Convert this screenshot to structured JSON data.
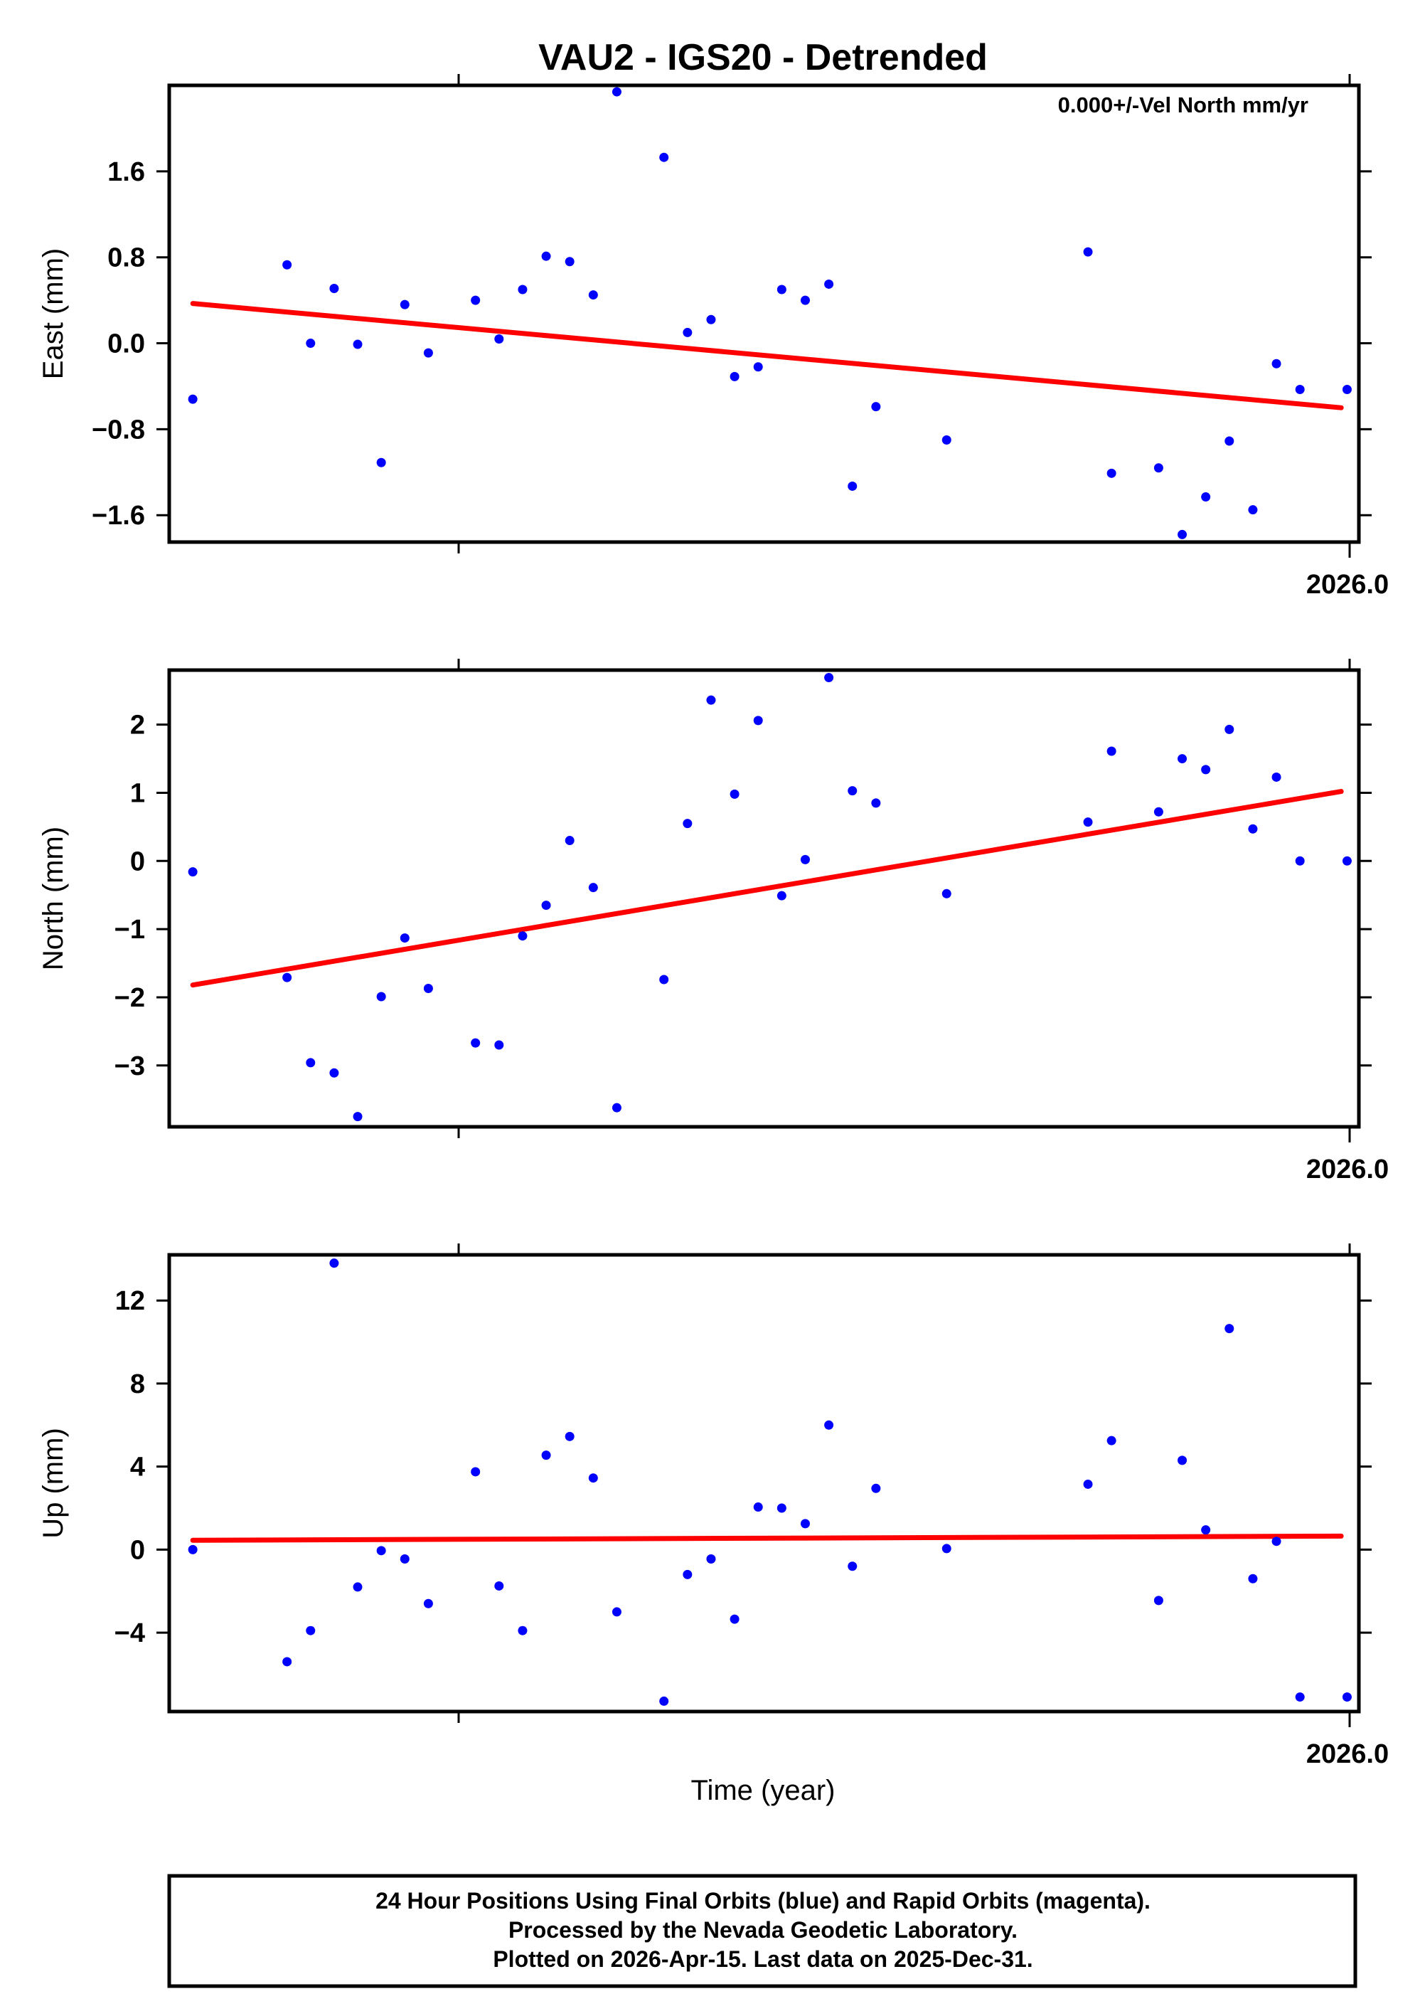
{
  "title": "VAU2 - IGS20 - Detrended",
  "annotation": "0.000+/-Vel North mm/yr",
  "xlabel": "Time (year)",
  "year_tick_label": "2026.0",
  "colors": {
    "final_orbit_points": "#0000ff",
    "trend_line": "#ff0000",
    "frame": "#000000"
  },
  "footer": {
    "line1": "24 Hour Positions Using Final Orbits (blue) and Rapid Orbits (magenta).",
    "line2": "Processed by the Nevada Geodetic Laboratory.",
    "line3": "Plotted on 2026-Apr-15. Last data on 2025-Dec-31."
  },
  "chart_data": [
    {
      "type": "scatter",
      "ylabel": "East (mm)",
      "ylim": [
        -1.85,
        2.4
      ],
      "xlim": [
        2025.0,
        2026.01
      ],
      "yticks": [
        1.6,
        0.8,
        0.0,
        -0.8,
        -1.6
      ],
      "ytick_labels": [
        "1.6",
        "0.8",
        "0.0",
        "−0.8",
        "−1.6"
      ],
      "trend": {
        "x": [
          2025.02,
          2025.995
        ],
        "y": [
          0.37,
          -0.6
        ]
      },
      "x": [
        2025.02,
        2025.1,
        2025.12,
        2025.14,
        2025.16,
        2025.18,
        2025.2,
        2025.22,
        2025.26,
        2025.28,
        2025.3,
        2025.32,
        2025.34,
        2025.36,
        2025.38,
        2025.42,
        2025.44,
        2025.46,
        2025.48,
        2025.5,
        2025.52,
        2025.54,
        2025.56,
        2025.58,
        2025.6,
        2025.66,
        2025.78,
        2025.8,
        2025.84,
        2025.86,
        2025.88,
        2025.9,
        2025.92,
        2025.94,
        2025.96,
        2026.0
      ],
      "y": [
        -0.52,
        0.73,
        0.0,
        0.51,
        -0.01,
        -1.11,
        0.36,
        -0.09,
        0.4,
        0.04,
        0.5,
        0.81,
        0.76,
        0.45,
        2.34,
        1.73,
        0.1,
        0.22,
        -0.31,
        -0.22,
        0.5,
        0.4,
        0.55,
        -1.33,
        -0.59,
        -0.9,
        0.85,
        -1.21,
        -1.16,
        -1.78,
        -1.43,
        -0.91,
        -1.55,
        -0.19,
        -0.43,
        -0.43
      ]
    },
    {
      "type": "scatter",
      "ylabel": "North (mm)",
      "ylim": [
        -3.9,
        2.8
      ],
      "xlim": [
        2025.0,
        2026.01
      ],
      "yticks": [
        2,
        1,
        0,
        -1,
        -2,
        -3
      ],
      "ytick_labels": [
        "2",
        "1",
        "0",
        "−1",
        "−2",
        "−3"
      ],
      "trend": {
        "x": [
          2025.02,
          2025.995
        ],
        "y": [
          -1.82,
          1.02
        ]
      },
      "x": [
        2025.02,
        2025.1,
        2025.12,
        2025.14,
        2025.16,
        2025.18,
        2025.2,
        2025.22,
        2025.26,
        2025.28,
        2025.3,
        2025.32,
        2025.34,
        2025.36,
        2025.38,
        2025.42,
        2025.44,
        2025.46,
        2025.48,
        2025.5,
        2025.52,
        2025.54,
        2025.56,
        2025.58,
        2025.6,
        2025.66,
        2025.78,
        2025.8,
        2025.84,
        2025.86,
        2025.88,
        2025.9,
        2025.92,
        2025.94,
        2025.96,
        2026.0
      ],
      "y": [
        -0.16,
        -1.71,
        -2.96,
        -3.11,
        -3.75,
        -1.99,
        -1.13,
        -1.87,
        -2.67,
        -2.7,
        -1.1,
        -0.65,
        0.3,
        -0.39,
        -3.62,
        -1.74,
        0.55,
        2.36,
        0.98,
        2.06,
        -0.51,
        0.02,
        2.69,
        1.03,
        0.85,
        -0.48,
        0.57,
        1.61,
        0.72,
        1.5,
        1.34,
        1.93,
        0.47,
        1.23,
        0.0,
        0.0
      ]
    },
    {
      "type": "scatter",
      "ylabel": "Up (mm)",
      "ylim": [
        -7.8,
        14.2
      ],
      "xlim": [
        2025.0,
        2026.01
      ],
      "yticks": [
        12,
        8,
        4,
        0,
        -4
      ],
      "ytick_labels": [
        "12",
        "8",
        "4",
        "0",
        "−4"
      ],
      "trend": {
        "x": [
          2025.02,
          2025.995
        ],
        "y": [
          0.45,
          0.65
        ]
      },
      "x": [
        2025.02,
        2025.1,
        2025.12,
        2025.14,
        2025.16,
        2025.18,
        2025.2,
        2025.22,
        2025.26,
        2025.28,
        2025.3,
        2025.32,
        2025.34,
        2025.36,
        2025.38,
        2025.42,
        2025.44,
        2025.46,
        2025.48,
        2025.5,
        2025.52,
        2025.54,
        2025.56,
        2025.58,
        2025.6,
        2025.66,
        2025.78,
        2025.8,
        2025.84,
        2025.86,
        2025.88,
        2025.9,
        2025.92,
        2025.94,
        2025.96,
        2026.0
      ],
      "y": [
        0.0,
        -5.4,
        -3.9,
        13.8,
        -1.8,
        -0.05,
        -0.45,
        -2.6,
        3.75,
        -1.75,
        -3.9,
        4.55,
        5.45,
        3.45,
        -3.0,
        -7.3,
        -1.2,
        -0.45,
        -3.35,
        2.05,
        2.0,
        1.25,
        6.0,
        -0.8,
        2.95,
        0.05,
        3.15,
        5.25,
        -2.45,
        4.3,
        0.95,
        10.65,
        -1.4,
        0.4,
        -7.1,
        -7.1
      ]
    }
  ]
}
